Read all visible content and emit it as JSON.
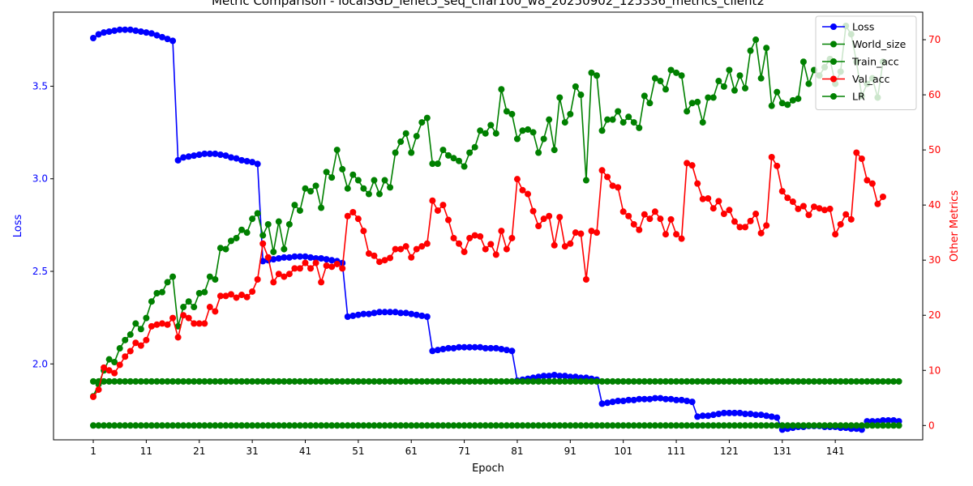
{
  "chart_data": {
    "type": "line",
    "title": "Metric Comparison - localSGD_lenet5_seq_cifar100_w8_20250902_125336_metrics_client2",
    "xlabel": "Epoch",
    "ylabel_left": "Loss",
    "ylabel_right": "Other Metrics",
    "left_axis_color": "#0000ff",
    "right_axis_color": "#ff0000",
    "xlim": [
      -6.5,
      157.5
    ],
    "ylim_left": [
      1.59,
      3.9
    ],
    "ylim_right": [
      -2.6,
      75
    ],
    "x_ticks": [
      1,
      11,
      21,
      31,
      41,
      51,
      61,
      71,
      81,
      91,
      101,
      111,
      121,
      131,
      141
    ],
    "x_tick_labels": [
      "1",
      "11",
      "21",
      "31",
      "41",
      "51",
      "61",
      "71",
      "81",
      "91",
      "101",
      "111",
      "121",
      "131",
      "141"
    ],
    "y_ticks_left": [
      2.0,
      2.5,
      3.0,
      3.5
    ],
    "y_tick_labels_left": [
      "2.0",
      "2.5",
      "3.0",
      "3.5"
    ],
    "y_ticks_right": [
      0,
      10,
      20,
      30,
      40,
      50,
      60,
      70
    ],
    "y_tick_labels_right": [
      "0",
      "10",
      "20",
      "30",
      "40",
      "50",
      "60",
      "70"
    ],
    "legend_position": "top-right",
    "grid": false,
    "x_start": 1,
    "series": [
      {
        "name": "Loss",
        "axis": "left",
        "color": "#0000ff",
        "values": [
          3.76,
          3.78,
          3.79,
          3.795,
          3.8,
          3.805,
          3.805,
          3.805,
          3.8,
          3.795,
          3.79,
          3.785,
          3.775,
          3.765,
          3.755,
          3.745,
          3.1,
          3.115,
          3.12,
          3.125,
          3.13,
          3.135,
          3.135,
          3.135,
          3.13,
          3.125,
          3.115,
          3.11,
          3.1,
          3.095,
          3.09,
          3.08,
          2.555,
          2.56,
          2.565,
          2.57,
          2.575,
          2.575,
          2.58,
          2.58,
          2.58,
          2.575,
          2.57,
          2.57,
          2.565,
          2.56,
          2.555,
          2.545,
          2.255,
          2.26,
          2.265,
          2.27,
          2.27,
          2.275,
          2.28,
          2.28,
          2.28,
          2.28,
          2.275,
          2.275,
          2.27,
          2.265,
          2.26,
          2.255,
          2.07,
          2.075,
          2.08,
          2.085,
          2.085,
          2.09,
          2.09,
          2.09,
          2.09,
          2.09,
          2.085,
          2.085,
          2.085,
          2.08,
          2.075,
          2.07,
          1.91,
          1.915,
          1.92,
          1.925,
          1.93,
          1.935,
          1.935,
          1.94,
          1.935,
          1.935,
          1.93,
          1.93,
          1.925,
          1.925,
          1.92,
          1.915,
          1.785,
          1.79,
          1.795,
          1.8,
          1.8,
          1.805,
          1.805,
          1.81,
          1.81,
          1.81,
          1.815,
          1.815,
          1.81,
          1.81,
          1.805,
          1.805,
          1.8,
          1.795,
          1.715,
          1.72,
          1.72,
          1.725,
          1.73,
          1.735,
          1.735,
          1.735,
          1.735,
          1.73,
          1.73,
          1.725,
          1.725,
          1.72,
          1.715,
          1.71,
          1.645,
          1.65,
          1.655,
          1.66,
          1.66,
          1.665,
          1.665,
          1.665,
          1.66,
          1.66,
          1.66,
          1.655,
          1.655,
          1.65,
          1.65,
          1.645,
          1.69,
          1.69,
          1.69,
          1.695,
          1.695,
          1.695,
          1.69
        ]
      },
      {
        "name": "World_size",
        "axis": "right",
        "color": "#008000",
        "constant": 8,
        "count": 153
      },
      {
        "name": "Train_acc",
        "axis": "right",
        "color": "#008000",
        "values": [
          5.3,
          7.5,
          10.0,
          12.0,
          11.5,
          14,
          15.5,
          16.5,
          18.5,
          17.5,
          19.5,
          22.5,
          24,
          24.2,
          26,
          27,
          18,
          21.5,
          22.5,
          21.5,
          24,
          24.2,
          27,
          26.5,
          32.2,
          32,
          33.5,
          34,
          35.5,
          35,
          37.5,
          38.5,
          34.5,
          36.5,
          31.5,
          37,
          32,
          36.5,
          40,
          39,
          43,
          42.5,
          43.5,
          39.5,
          46,
          45,
          50,
          46.5,
          43,
          45.5,
          44.5,
          43,
          42,
          44.5,
          42,
          44.5,
          43.2,
          49.5,
          51.5,
          53,
          49.5,
          52.5,
          55,
          55.8,
          47.5,
          47.5,
          50,
          49,
          48.5,
          48,
          47,
          49.5,
          50.5,
          53.5,
          53,
          54.5,
          53,
          61,
          57,
          56.5,
          52,
          53.5,
          53.7,
          53.2,
          49.5,
          52,
          55.5,
          50,
          59.5,
          55,
          56.5,
          61.5,
          60,
          44.5,
          64,
          63.5,
          53.5,
          55.5,
          55.5,
          57,
          55,
          56,
          55,
          54,
          59.8,
          58.5,
          63,
          62.5,
          61,
          64.5,
          64,
          63.5,
          57,
          58.5,
          58.7,
          55,
          59.5,
          59.5,
          62.5,
          61.5,
          64.5,
          60.8,
          63.5,
          61.2,
          68,
          70,
          63,
          68.5,
          58,
          60.5,
          58.5,
          58.2,
          59,
          59.3,
          66,
          62,
          64.5,
          63.5,
          65,
          66.5,
          62,
          64.2,
          72.5,
          71,
          66,
          59.8,
          62,
          63,
          59.5,
          66
        ]
      },
      {
        "name": "Val_acc",
        "axis": "right",
        "color": "#ff0000",
        "values": [
          5.2,
          6.5,
          10.5,
          10,
          9.5,
          11,
          12.5,
          13.5,
          15,
          14.5,
          15.5,
          18,
          18.3,
          18.5,
          18.3,
          19.5,
          16,
          20,
          19.5,
          18.5,
          18.5,
          18.5,
          21.5,
          20.7,
          23.5,
          23.5,
          23.8,
          23.2,
          23.7,
          23.3,
          24.3,
          26.5,
          33,
          30.5,
          26,
          27.5,
          27,
          27.5,
          28.5,
          28.5,
          29.5,
          28.5,
          29.5,
          26,
          29,
          28.8,
          29.3,
          28.5,
          38,
          38.7,
          37.5,
          35.3,
          31.2,
          30.8,
          29.7,
          30,
          30.4,
          32,
          32,
          32.5,
          30.5,
          32,
          32.5,
          33,
          40.8,
          39,
          40,
          37.3,
          34,
          33,
          31.5,
          34,
          34.5,
          34.3,
          32,
          32.9,
          31,
          35.3,
          32,
          34,
          44.7,
          42.7,
          42,
          38.9,
          36.2,
          37.5,
          38,
          32.7,
          37.8,
          32.5,
          33,
          35,
          34.8,
          26.5,
          35.3,
          35,
          46.3,
          45.1,
          43.5,
          43.2,
          38.8,
          38,
          36.5,
          35.5,
          38.3,
          37.5,
          38.8,
          37.5,
          34.7,
          37.4,
          34.7,
          33.9,
          47.6,
          47.2,
          43.9,
          41.1,
          41.2,
          39.4,
          40.7,
          38.4,
          39.1,
          37,
          36,
          36,
          37.1,
          38.4,
          34.9,
          36.3,
          48.7,
          47.1,
          42.5,
          41.3,
          40.6,
          39.3,
          39.8,
          38.2,
          39.7,
          39.4,
          39.1,
          39.3,
          34.7,
          36.5,
          38.3,
          37.4,
          49.5,
          48.4,
          44.5,
          43.9,
          40.2,
          41.5
        ]
      },
      {
        "name": "LR",
        "axis": "right",
        "color": "#008000",
        "constant": 0,
        "count": 153
      }
    ]
  }
}
